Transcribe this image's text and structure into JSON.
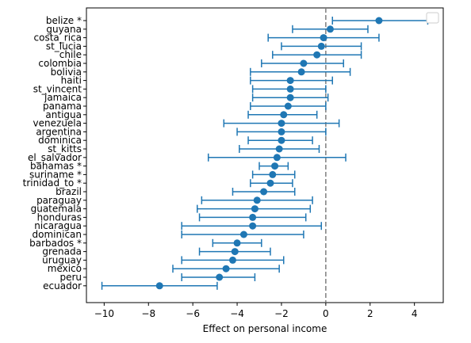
{
  "chart_data": {
    "type": "scatter",
    "title": "",
    "xlabel": "Effect on personal income",
    "ylabel": "",
    "xlim": [
      -10.8,
      5.3
    ],
    "xticks": [
      -10,
      -8,
      -6,
      -4,
      -2,
      0,
      2,
      4
    ],
    "xtick_labels": [
      "−10",
      "−8",
      "−6",
      "−4",
      "−2",
      "0",
      "2",
      "4"
    ],
    "reference_line": {
      "x": 0,
      "style": "dashed",
      "color": "#7f7f7f"
    },
    "grid": false,
    "legend": {
      "placement": "upper-right",
      "entries": []
    },
    "colors": {
      "series": "#1f77b4",
      "reference": "#7f7f7f"
    },
    "points": [
      {
        "label": "belize *",
        "estimate": 2.4,
        "lower": 0.3,
        "upper": 4.6
      },
      {
        "label": "guyana",
        "estimate": 0.2,
        "lower": -1.5,
        "upper": 1.9
      },
      {
        "label": "costa_rica",
        "estimate": -0.1,
        "lower": -2.6,
        "upper": 2.4
      },
      {
        "label": "st_lucia",
        "estimate": -0.2,
        "lower": -2.0,
        "upper": 1.6
      },
      {
        "label": "chile",
        "estimate": -0.4,
        "lower": -2.4,
        "upper": 1.6
      },
      {
        "label": "colombia",
        "estimate": -1.0,
        "lower": -2.9,
        "upper": 0.8
      },
      {
        "label": "bolivia",
        "estimate": -1.1,
        "lower": -3.4,
        "upper": 1.1
      },
      {
        "label": "haiti",
        "estimate": -1.6,
        "lower": -3.4,
        "upper": 0.3
      },
      {
        "label": "st_vincent",
        "estimate": -1.6,
        "lower": -3.3,
        "upper": 0.0
      },
      {
        "label": "jamaica",
        "estimate": -1.6,
        "lower": -3.3,
        "upper": 0.1
      },
      {
        "label": "panama",
        "estimate": -1.7,
        "lower": -3.4,
        "upper": 0.0
      },
      {
        "label": "antigua",
        "estimate": -1.9,
        "lower": -3.5,
        "upper": -0.4
      },
      {
        "label": "venezuela",
        "estimate": -2.0,
        "lower": -4.6,
        "upper": 0.6
      },
      {
        "label": "argentina",
        "estimate": -2.0,
        "lower": -4.0,
        "upper": 0.0
      },
      {
        "label": "dominica",
        "estimate": -2.0,
        "lower": -3.5,
        "upper": -0.6
      },
      {
        "label": "st_kitts",
        "estimate": -2.1,
        "lower": -3.9,
        "upper": -0.3
      },
      {
        "label": "el_salvador",
        "estimate": -2.2,
        "lower": -5.3,
        "upper": 0.9
      },
      {
        "label": "bahamas *",
        "estimate": -2.3,
        "lower": -3.0,
        "upper": -1.7
      },
      {
        "label": "suriname *",
        "estimate": -2.4,
        "lower": -3.3,
        "upper": -1.4
      },
      {
        "label": "trinidad_to *",
        "estimate": -2.5,
        "lower": -3.4,
        "upper": -1.5
      },
      {
        "label": "brazil",
        "estimate": -2.8,
        "lower": -4.2,
        "upper": -1.4
      },
      {
        "label": "paraguay",
        "estimate": -3.1,
        "lower": -5.6,
        "upper": -0.6
      },
      {
        "label": "guatemala",
        "estimate": -3.2,
        "lower": -5.8,
        "upper": -0.7
      },
      {
        "label": "honduras",
        "estimate": -3.3,
        "lower": -5.7,
        "upper": -0.9
      },
      {
        "label": "nicaragua",
        "estimate": -3.3,
        "lower": -6.5,
        "upper": -0.2
      },
      {
        "label": "dominican",
        "estimate": -3.7,
        "lower": -6.5,
        "upper": -1.0
      },
      {
        "label": "barbados *",
        "estimate": -4.0,
        "lower": -5.1,
        "upper": -2.9
      },
      {
        "label": "grenada",
        "estimate": -4.1,
        "lower": -5.7,
        "upper": -2.5
      },
      {
        "label": "uruguay",
        "estimate": -4.2,
        "lower": -6.5,
        "upper": -1.9
      },
      {
        "label": "mexico",
        "estimate": -4.5,
        "lower": -6.9,
        "upper": -2.1
      },
      {
        "label": "peru",
        "estimate": -4.8,
        "lower": -6.5,
        "upper": -3.2
      },
      {
        "label": "ecuador",
        "estimate": -7.5,
        "lower": -10.1,
        "upper": -4.9
      }
    ]
  }
}
